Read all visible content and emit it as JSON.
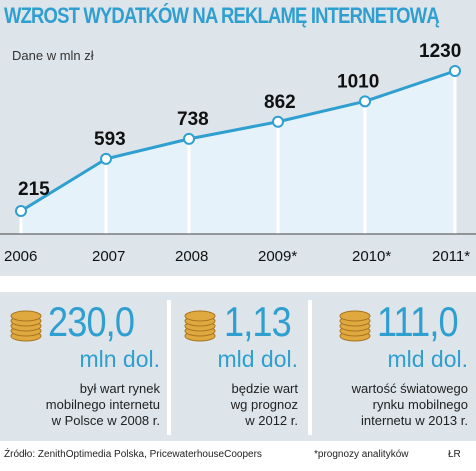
{
  "title": "WZROST WYDATKÓW NA REKLAMĘ INTERNETOWĄ",
  "subtitle": "Dane w mln zł",
  "colors": {
    "accent": "#2f9fd0",
    "background": "#dde4ea",
    "fill": "#d6ecf7",
    "coin": "#e0a93f"
  },
  "chart_data": {
    "type": "area",
    "categories": [
      "2006",
      "2007",
      "2008",
      "2009*",
      "2010*",
      "2011*"
    ],
    "values": [
      215,
      593,
      738,
      862,
      1010,
      1230
    ],
    "value_labels": [
      "215",
      "593",
      "738",
      "862",
      "1010",
      "1230"
    ],
    "ylabel": "Dane w mln zł",
    "ylim": [
      0,
      1300
    ],
    "grid": false
  },
  "facts": [
    {
      "big": "230,0",
      "unit": "mln dol.",
      "lines": [
        "był wart rynek",
        "mobilnego internetu",
        "w Polsce w 2008 r."
      ],
      "icon": "coins-icon"
    },
    {
      "big": "1,13",
      "unit": "mld dol.",
      "lines": [
        "będzie wart",
        "wg prognoz",
        "w 2012 r."
      ],
      "icon": "coins-icon"
    },
    {
      "big": "111,0",
      "unit": "mld dol.",
      "lines": [
        "wartość światowego",
        "rynku mobilnego",
        "internetu w 2013 r."
      ],
      "icon": "coins-icon"
    }
  ],
  "footer": {
    "source": "Źródło: ZenithOptimedia Polska, PricewaterhouseCoopers",
    "note": "*prognozy analityków",
    "author": "ŁR"
  }
}
